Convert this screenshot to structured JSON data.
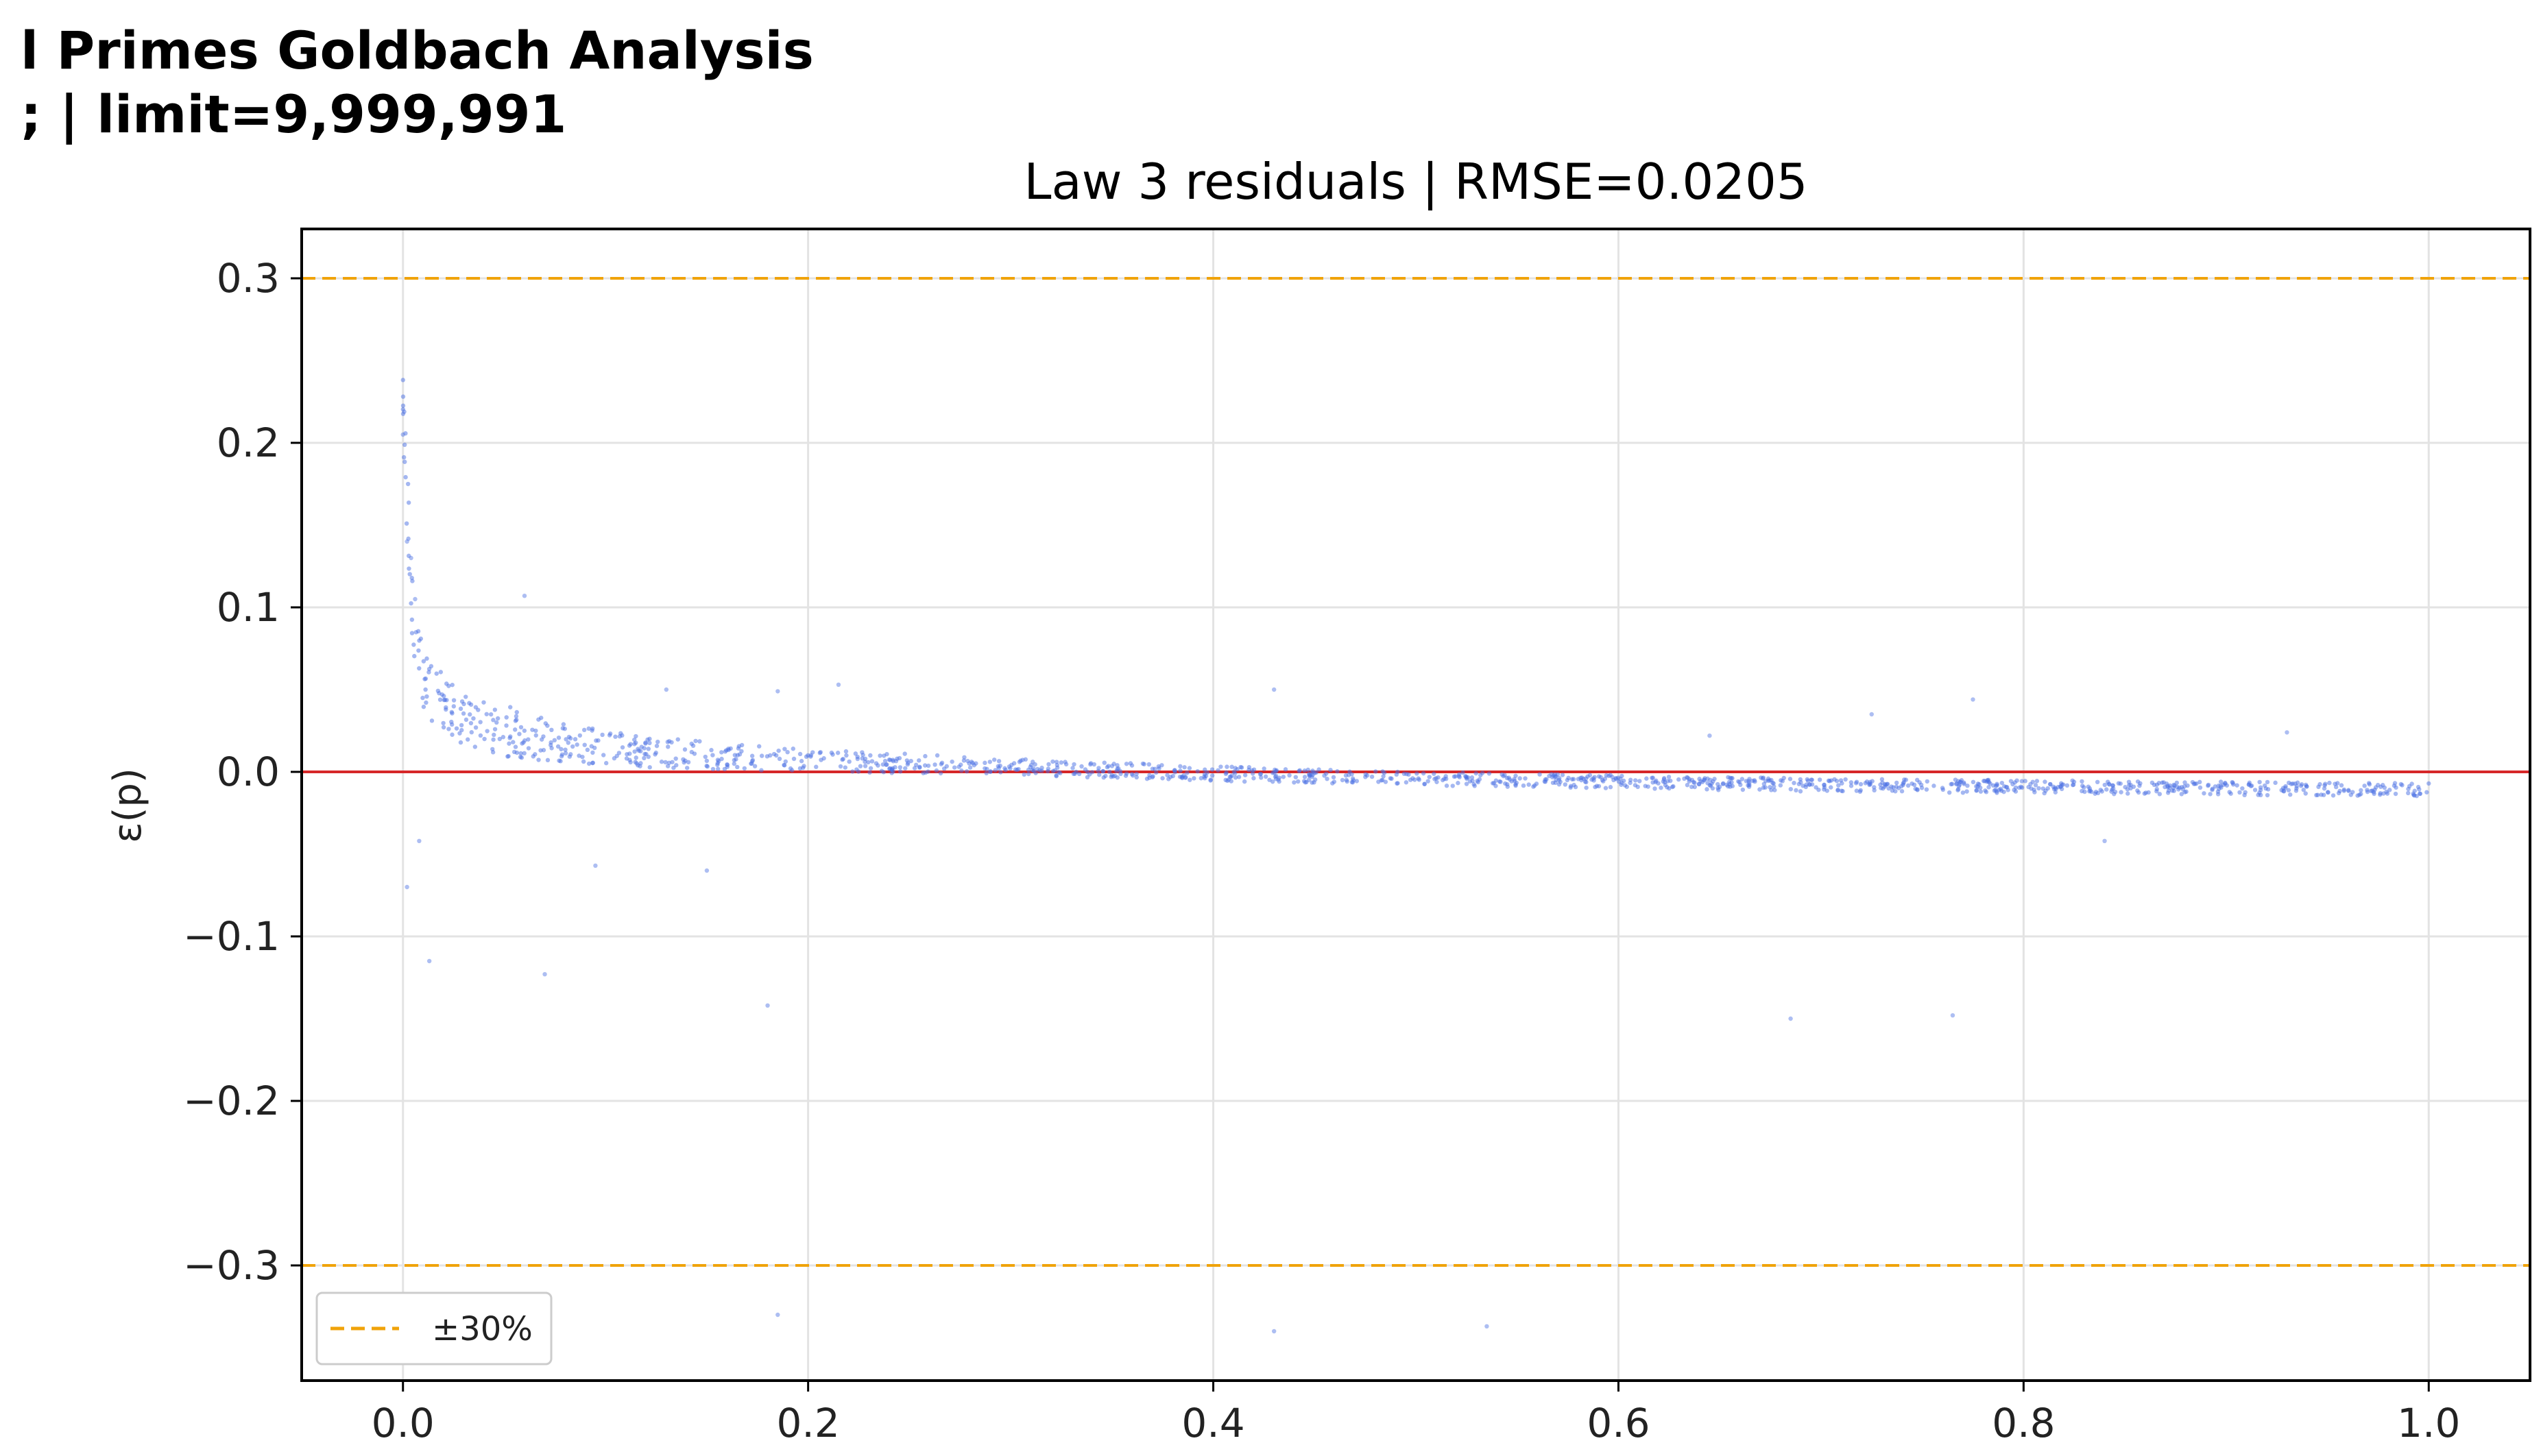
{
  "figure": {
    "suptitle_line1": "l Primes Goldbach Analysis",
    "suptitle_line2": "; | limit=9,999,991"
  },
  "chart_data": {
    "type": "scatter",
    "title": "Law 3 residuals | RMSE=0.0205",
    "xlabel": "",
    "ylabel": "ε(p)",
    "xlim": [
      -0.05,
      1.05
    ],
    "ylim": [
      -0.37,
      0.33
    ],
    "xticks": [
      0.0,
      0.2,
      0.4,
      0.6,
      0.8,
      1.0
    ],
    "xtick_labels": [
      "0.0",
      "0.2",
      "0.4",
      "0.6",
      "0.8",
      "1.0"
    ],
    "yticks": [
      0.3,
      0.2,
      0.1,
      0.0,
      -0.1,
      -0.2,
      -0.3
    ],
    "ytick_labels": [
      "0.3",
      "0.2",
      "0.1",
      "0.0",
      "−0.1",
      "−0.2",
      "−0.3"
    ],
    "grid": true,
    "legend_location": "lower-left",
    "legend_entries": [
      {
        "label": "±30%",
        "style": "dashed",
        "color": "#f0a30a"
      }
    ],
    "reference_lines": [
      {
        "y": 0.0,
        "color": "#d62728",
        "style": "solid"
      },
      {
        "y": 0.3,
        "color": "#f0a30a",
        "style": "dashed"
      },
      {
        "y": -0.3,
        "color": "#f0a30a",
        "style": "dashed"
      }
    ],
    "point_color": "#4a6fe3",
    "trend_points": [
      [
        0.0,
        0.22
      ],
      [
        0.005,
        0.09
      ],
      [
        0.01,
        0.055
      ],
      [
        0.02,
        0.042
      ],
      [
        0.03,
        0.033
      ],
      [
        0.05,
        0.025
      ],
      [
        0.08,
        0.018
      ],
      [
        0.1,
        0.014
      ],
      [
        0.15,
        0.01
      ],
      [
        0.2,
        0.007
      ],
      [
        0.3,
        0.003
      ],
      [
        0.4,
        -0.001
      ],
      [
        0.5,
        -0.004
      ],
      [
        0.6,
        -0.006
      ],
      [
        0.7,
        -0.008
      ],
      [
        0.8,
        -0.009
      ],
      [
        0.9,
        -0.01
      ],
      [
        1.0,
        -0.011
      ]
    ],
    "outliers": [
      [
        0.0,
        0.205
      ],
      [
        0.002,
        0.14
      ],
      [
        0.004,
        0.13
      ],
      [
        0.006,
        0.105
      ],
      [
        0.06,
        0.107
      ],
      [
        0.13,
        0.05
      ],
      [
        0.185,
        0.049
      ],
      [
        0.215,
        0.053
      ],
      [
        0.43,
        0.05
      ],
      [
        0.645,
        0.022
      ],
      [
        0.725,
        0.035
      ],
      [
        0.775,
        0.044
      ],
      [
        0.93,
        0.024
      ],
      [
        0.002,
        -0.07
      ],
      [
        0.008,
        -0.042
      ],
      [
        0.013,
        -0.115
      ],
      [
        0.07,
        -0.123
      ],
      [
        0.095,
        -0.057
      ],
      [
        0.15,
        -0.06
      ],
      [
        0.18,
        -0.142
      ],
      [
        0.185,
        -0.33
      ],
      [
        0.43,
        -0.34
      ],
      [
        0.535,
        -0.337
      ],
      [
        0.685,
        -0.15
      ],
      [
        0.765,
        -0.148
      ],
      [
        0.84,
        -0.042
      ]
    ]
  }
}
